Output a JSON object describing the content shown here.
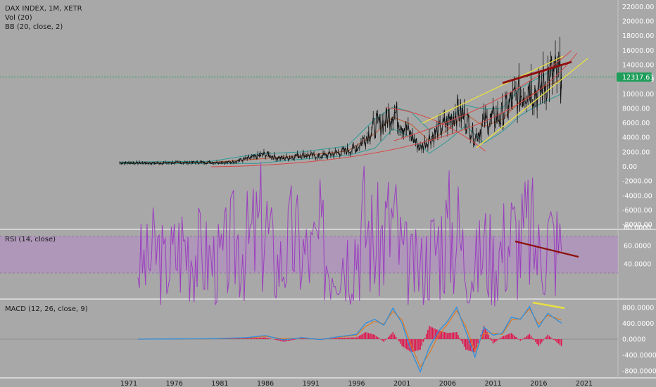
{
  "colors": {
    "background": "#a8a8a8",
    "separator": "#ffffff",
    "price": "#111111",
    "bb_middle": "#c05a30",
    "bb_upper": "#2e9a94",
    "bb_lower": "#2e9a94",
    "rsi_line": "#9b3fbf",
    "rsi_band": "#b389c7",
    "macd_line": "#2c8fe0",
    "signal_line": "#e07820",
    "hist": "#e0174f",
    "last_price_badge": "#1e9e5a",
    "annotation_dark_red": "#8e0f0f",
    "annotation_yellow": "#e8e040",
    "annotation_red": "#d84848"
  },
  "panes": {
    "price": {
      "title": "DAX INDEX, 1M, XETR",
      "vol_label": "Vol (20)",
      "bb_label": "BB (20, close, 2)",
      "last_price": "12317.61"
    },
    "rsi": {
      "label": "RSI (14, close)"
    },
    "macd": {
      "label": "MACD (12, 26, close, 9)"
    }
  },
  "chart_data": [
    {
      "type": "line",
      "title": "DAX INDEX, 1M, XETR",
      "x_ticks": [
        "1971",
        "1976",
        "1981",
        "1986",
        "1991",
        "1996",
        "2001",
        "2006",
        "2011",
        "2016",
        "2021"
      ],
      "y_ticks": [
        "22000.00",
        "20000.00",
        "18000.00",
        "16000.00",
        "14000.00",
        "12000.00",
        "10000.00",
        "8000.00",
        "6000.00",
        "4000.00",
        "2000.00",
        "0.00",
        "-2000.00",
        "-4000.00",
        "-6000.00",
        "-8000.00"
      ],
      "ylim": [
        -8000,
        22000
      ],
      "last_value": 12317.61,
      "series": [
        {
          "name": "DAX INDEX",
          "x": [
            1970,
            1974,
            1978,
            1982,
            1985,
            1986,
            1987,
            1988,
            1990,
            1992,
            1994,
            1996,
            1997,
            1998,
            1999,
            2000,
            2001,
            2002,
            2003,
            2004,
            2005,
            2006,
            2007,
            2008,
            2009,
            2010,
            2011,
            2012,
            2013,
            2014,
            2015,
            2016,
            2017,
            2018.5
          ],
          "y": [
            500,
            450,
            550,
            560,
            1300,
            1700,
            1300,
            1100,
            1600,
            1400,
            1900,
            2500,
            4000,
            5500,
            6000,
            7800,
            6000,
            4200,
            2500,
            3900,
            4900,
            6000,
            7800,
            6600,
            4000,
            6000,
            6500,
            7000,
            8800,
            9900,
            11500,
            10000,
            12500,
            12300
          ]
        },
        {
          "name": "BB basis",
          "x": [
            1970,
            1980,
            1985,
            1990,
            1995,
            1998,
            2000,
            2002,
            2004,
            2006,
            2008,
            2010,
            2012,
            2014,
            2016,
            2018.5
          ],
          "y": [
            500,
            550,
            1000,
            1500,
            2100,
            4500,
            6800,
            5800,
            3500,
            5000,
            7200,
            5500,
            6500,
            9000,
            10500,
            12000
          ]
        },
        {
          "name": "BB upper",
          "x": [
            1970,
            1980,
            1985,
            1990,
            1995,
            1998,
            2000,
            2002,
            2004,
            2006,
            2008,
            2010,
            2012,
            2014,
            2016,
            2018.5
          ],
          "y": [
            600,
            700,
            1700,
            2000,
            2800,
            6500,
            8200,
            7500,
            5000,
            6600,
            8400,
            7900,
            8000,
            10800,
            12200,
            14000
          ]
        },
        {
          "name": "BB lower",
          "x": [
            1970,
            1980,
            1985,
            1990,
            1995,
            1998,
            2000,
            2002,
            2004,
            2006,
            2008,
            2010,
            2012,
            2014,
            2016,
            2018.5
          ],
          "y": [
            400,
            420,
            400,
            1000,
            1500,
            2500,
            5200,
            4000,
            1800,
            3500,
            5600,
            3200,
            4800,
            7000,
            8500,
            10000
          ]
        }
      ]
    },
    {
      "type": "line",
      "title": "RSI (14, close)",
      "y_ticks": [
        "80.0000",
        "60.0000",
        "40.0000"
      ],
      "band": [
        30,
        70
      ],
      "series": [
        {
          "name": "RSI",
          "x": [
            1972,
            1973,
            1974,
            1975,
            1976,
            1977,
            1978,
            1979,
            1980,
            1981,
            1982,
            1983,
            1984,
            1985,
            1986,
            1987,
            1988,
            1989,
            1990,
            1991,
            1992,
            1993,
            1994,
            1995,
            1996,
            1997,
            1998,
            1999,
            2000,
            2001,
            2002,
            2003,
            2004,
            2005,
            2006,
            2007,
            2008,
            2009,
            2010,
            2011,
            2012,
            2013,
            2014,
            2015,
            2016,
            2017,
            2018.5
          ],
          "y": [
            42,
            40,
            56,
            36,
            50,
            64,
            58,
            48,
            44,
            40,
            56,
            66,
            60,
            72,
            86,
            38,
            44,
            70,
            52,
            48,
            66,
            40,
            60,
            52,
            66,
            86,
            58,
            72,
            88,
            48,
            36,
            34,
            52,
            66,
            74,
            80,
            42,
            34,
            60,
            44,
            58,
            72,
            64,
            78,
            50,
            72,
            54
          ]
        }
      ]
    },
    {
      "type": "line",
      "title": "MACD (12, 26, close, 9)",
      "y_ticks": [
        "800.0000",
        "400.0000",
        "0.0000",
        "-400.0000",
        "-800.0000"
      ],
      "series": [
        {
          "name": "MACD",
          "x": [
            1972,
            1976,
            1980,
            1984,
            1986,
            1988,
            1990,
            1992,
            1994,
            1996,
            1997,
            1998,
            1999,
            2000,
            2001,
            2002,
            2003,
            2004,
            2005,
            2006,
            2007,
            2008,
            2009,
            2010,
            2011,
            2012,
            2013,
            2014,
            2015,
            2016,
            2017,
            2018.5
          ],
          "y": [
            0,
            5,
            10,
            40,
            90,
            -20,
            40,
            -10,
            60,
            120,
            400,
            500,
            350,
            780,
            400,
            -300,
            -820,
            -200,
            200,
            450,
            800,
            200,
            -450,
            300,
            100,
            150,
            550,
            500,
            820,
            300,
            650,
            400
          ]
        },
        {
          "name": "Signal",
          "x": [
            1972,
            1976,
            1980,
            1984,
            1986,
            1988,
            1990,
            1992,
            1994,
            1996,
            1997,
            1998,
            1999,
            2000,
            2001,
            2002,
            2003,
            2004,
            2005,
            2006,
            2007,
            2008,
            2009,
            2010,
            2011,
            2012,
            2013,
            2014,
            2015,
            2016,
            2017,
            2018.5
          ],
          "y": [
            0,
            5,
            8,
            30,
            70,
            10,
            30,
            0,
            45,
            100,
            320,
            450,
            380,
            700,
            480,
            -150,
            -700,
            -350,
            100,
            380,
            720,
            320,
            -300,
            150,
            150,
            120,
            480,
            520,
            760,
            380,
            600,
            480
          ]
        }
      ]
    }
  ]
}
